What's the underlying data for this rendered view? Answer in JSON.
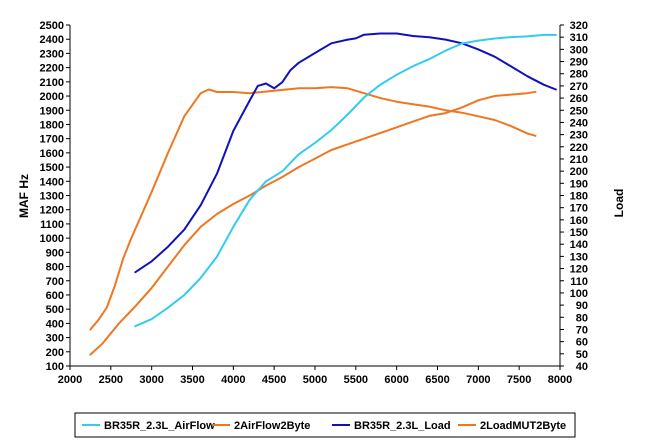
{
  "chart_data": {
    "type": "line",
    "xlabel": "",
    "ylabel": "MAF Hz",
    "y2label": "Load",
    "xlim": [
      2000,
      8000
    ],
    "ylim": [
      100,
      2500
    ],
    "y2lim": [
      40,
      320
    ],
    "x_ticks": [
      2000,
      2500,
      3000,
      3500,
      4000,
      4500,
      5000,
      5500,
      6000,
      6500,
      7000,
      7500,
      8000
    ],
    "y_ticks": [
      100,
      200,
      300,
      400,
      500,
      600,
      700,
      800,
      900,
      1000,
      1100,
      1200,
      1300,
      1400,
      1500,
      1600,
      1700,
      1800,
      1900,
      2000,
      2100,
      2200,
      2300,
      2400,
      2500
    ],
    "y2_ticks": [
      40,
      50,
      60,
      70,
      80,
      90,
      100,
      110,
      120,
      130,
      140,
      150,
      160,
      170,
      180,
      190,
      200,
      210,
      220,
      230,
      240,
      250,
      260,
      270,
      280,
      290,
      300,
      310,
      320
    ],
    "grid": false,
    "legend_position": "bottom",
    "series": [
      {
        "name": "BR35R_2.3L_AirFlow",
        "axis": "left",
        "color": "#33ccee",
        "x": [
          2800,
          3000,
          3200,
          3400,
          3600,
          3800,
          4000,
          4200,
          4400,
          4600,
          4800,
          5000,
          5200,
          5400,
          5600,
          5800,
          6000,
          6200,
          6400,
          6600,
          6800,
          7000,
          7200,
          7400,
          7600,
          7800,
          7950
        ],
        "y": [
          380,
          430,
          510,
          600,
          720,
          870,
          1080,
          1270,
          1400,
          1470,
          1590,
          1670,
          1760,
          1870,
          1990,
          2080,
          2150,
          2210,
          2260,
          2320,
          2370,
          2390,
          2405,
          2415,
          2420,
          2430,
          2430
        ]
      },
      {
        "name": "2AirFlow2Byte",
        "axis": "left",
        "color": "#ee7722",
        "x": [
          2250,
          2400,
          2600,
          2800,
          3000,
          3200,
          3400,
          3600,
          3800,
          4000,
          4200,
          4400,
          4600,
          4800,
          5000,
          5200,
          5400,
          5600,
          5800,
          6000,
          6200,
          6400,
          6600,
          6800,
          7000,
          7200,
          7400,
          7600,
          7700
        ],
        "y": [
          180,
          260,
          400,
          520,
          650,
          800,
          950,
          1080,
          1170,
          1240,
          1300,
          1370,
          1430,
          1500,
          1560,
          1620,
          1660,
          1700,
          1740,
          1780,
          1820,
          1860,
          1880,
          1920,
          1970,
          2000,
          2010,
          2020,
          2030
        ]
      },
      {
        "name": "BR35R_2.3L_Load",
        "axis": "right",
        "color": "#1111bb",
        "x": [
          2800,
          3000,
          3200,
          3400,
          3600,
          3800,
          4000,
          4200,
          4300,
          4400,
          4500,
          4600,
          4700,
          4800,
          5000,
          5200,
          5400,
          5500,
          5600,
          5800,
          6000,
          6200,
          6400,
          6600,
          6800,
          7000,
          7200,
          7400,
          7600,
          7800,
          7950
        ],
        "y": [
          117,
          126,
          138,
          152,
          172,
          198,
          233,
          258,
          270,
          272,
          268,
          273,
          283,
          289,
          297,
          305,
          308,
          309,
          312,
          313,
          313,
          311,
          310,
          308,
          305,
          300,
          294,
          286,
          278,
          271,
          267
        ]
      },
      {
        "name": "2LoadMUT2Byte",
        "axis": "right",
        "color": "#ee7722",
        "x": [
          2250,
          2350,
          2450,
          2550,
          2650,
          2750,
          2850,
          3000,
          3200,
          3400,
          3600,
          3700,
          3800,
          4000,
          4200,
          4500,
          4800,
          5000,
          5200,
          5400,
          5600,
          5800,
          6000,
          6200,
          6400,
          6600,
          6800,
          7000,
          7200,
          7400,
          7600,
          7700
        ],
        "y": [
          70,
          78,
          88,
          106,
          128,
          145,
          160,
          183,
          215,
          245,
          264,
          267,
          265,
          265,
          264,
          266,
          268,
          268,
          269,
          268,
          264,
          260,
          257,
          255,
          253,
          250,
          248,
          245,
          242,
          237,
          231,
          229
        ]
      }
    ]
  }
}
